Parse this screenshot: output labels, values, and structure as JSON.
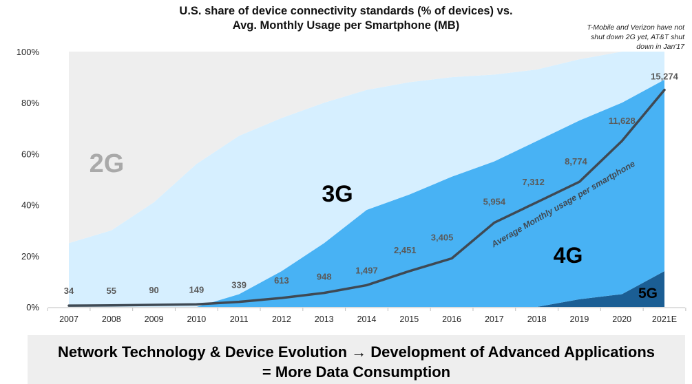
{
  "title_line1": "U.S. share of device connectivity standards (% of devices) vs.",
  "title_line2": "Avg. Monthly Usage per Smartphone (MB)",
  "note_lines": [
    "T-Mobile and Verizon have not",
    "shut down 2G yet, AT&T shut",
    "down in Jan'17"
  ],
  "banner_line1": "Network Technology & Device Evolution → Development of Advanced Applications",
  "banner_line2": "= More Data Consumption",
  "colors": {
    "g2": "#eeeeee",
    "g3": "#d6efff",
    "g4": "#48b2f4",
    "g5": "#1b5e94",
    "usage_line": "#3f4953"
  },
  "chart_data": {
    "type": "area",
    "categories": [
      "2007",
      "2008",
      "2009",
      "2010",
      "2011",
      "2012",
      "2013",
      "2014",
      "2015",
      "2016",
      "2017",
      "2018",
      "2019",
      "2020",
      "2021E"
    ],
    "ylim": [
      0,
      100
    ],
    "yticks": [
      "0%",
      "20%",
      "40%",
      "60%",
      "80%",
      "100%"
    ],
    "stacked_series": [
      {
        "name": "5G",
        "values": [
          0,
          0,
          0,
          0,
          0,
          0,
          0,
          0,
          0,
          0,
          0,
          0,
          3,
          5,
          14
        ]
      },
      {
        "name": "4G",
        "values": [
          0,
          0,
          0,
          0,
          5,
          14,
          25,
          38,
          44,
          51,
          57,
          65,
          70,
          75,
          75
        ]
      },
      {
        "name": "3G",
        "values": [
          25,
          30,
          41,
          56,
          62,
          60,
          55,
          47,
          44,
          39,
          34,
          28,
          24,
          20,
          11
        ]
      },
      {
        "name": "2G",
        "values": [
          75,
          70,
          59,
          44,
          33,
          26,
          20,
          15,
          12,
          10,
          9,
          7,
          3,
          0,
          0
        ]
      }
    ],
    "area_labels": [
      "2G",
      "3G",
      "4G",
      "5G"
    ],
    "line_series": {
      "name": "Average Monthly usage per smartphone",
      "values": [
        34,
        55,
        90,
        149,
        339,
        613,
        948,
        1497,
        2451,
        3405,
        5954,
        7312,
        8774,
        11628,
        15274
      ],
      "labels": [
        "34",
        "55",
        "90",
        "149",
        "339",
        "613",
        "948",
        "1,497",
        "2,451",
        "3,405",
        "5,954",
        "7,312",
        "8,774",
        "11,628",
        "15,274"
      ],
      "plot_pct": [
        0.5,
        0.6,
        0.8,
        1.0,
        2.0,
        3.5,
        5.5,
        8.5,
        14,
        19,
        33,
        41,
        49,
        65,
        85
      ]
    }
  }
}
